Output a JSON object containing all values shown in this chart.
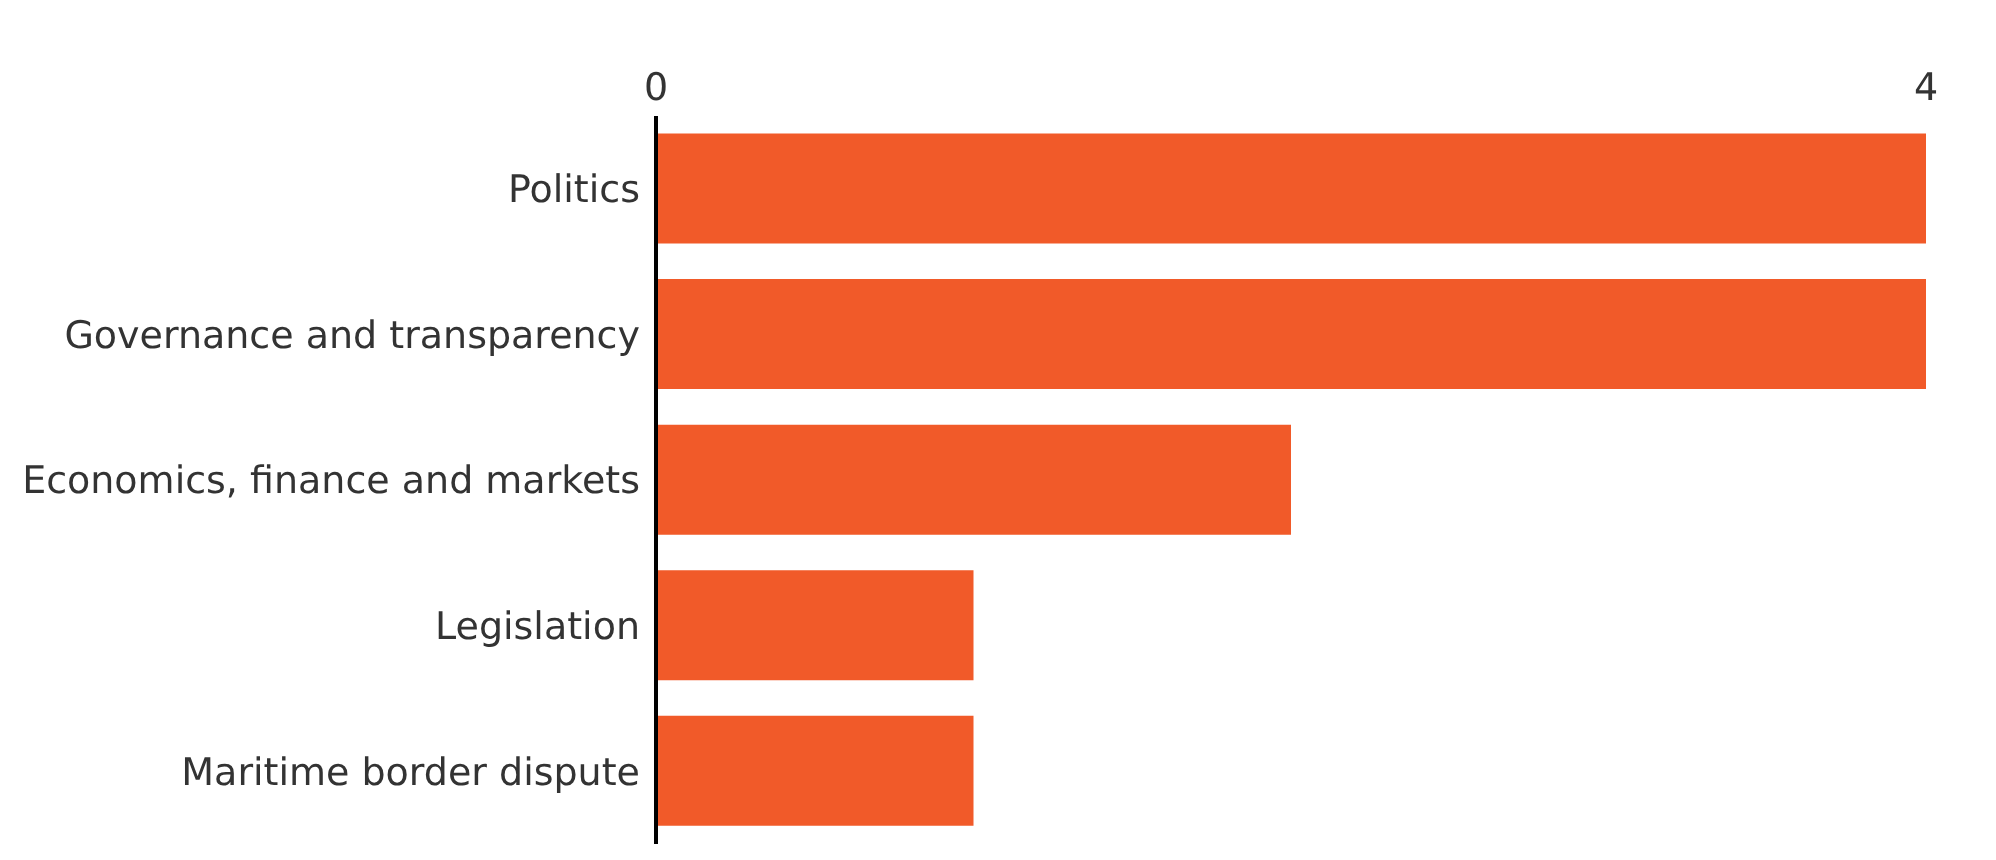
{
  "chart_data": {
    "type": "bar",
    "orientation": "horizontal",
    "categories": [
      "Politics",
      "Governance and transparency",
      "Economics, finance and markets",
      "Legislation",
      "Maritime border dispute"
    ],
    "values": [
      4,
      4,
      2,
      1,
      1
    ],
    "color": "#f15a29",
    "xlim": [
      0,
      4
    ],
    "xticks": [
      0,
      4
    ]
  }
}
